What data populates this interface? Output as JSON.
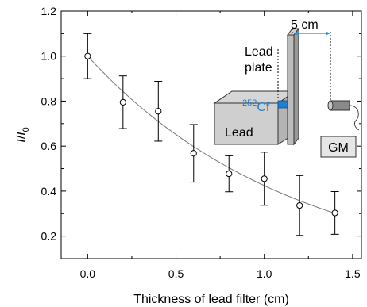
{
  "chart_data": {
    "type": "scatter",
    "title": "",
    "xlabel": "Thickness of lead filter (cm)",
    "ylabel_main": "I",
    "ylabel_sep": "/",
    "ylabel_sym": "I",
    "ylabel_sub": "0",
    "xlim": [
      -0.15,
      1.55
    ],
    "ylim": [
      0.1,
      1.2
    ],
    "x_ticks": [
      0.0,
      0.5,
      1.0,
      1.5
    ],
    "x_tick_labels": [
      "0.0",
      "0.5",
      "1.0",
      "1.5"
    ],
    "y_ticks": [
      0.2,
      0.4,
      0.6,
      0.8,
      1.0,
      1.2
    ],
    "y_tick_labels": [
      "0.2",
      "0.4",
      "0.6",
      "0.8",
      "1.0",
      "1.2"
    ],
    "grid": false,
    "points": [
      {
        "x": 0.0,
        "y": 1.0,
        "err": 0.1
      },
      {
        "x": 0.2,
        "y": 0.795,
        "err": 0.117
      },
      {
        "x": 0.4,
        "y": 0.755,
        "err": 0.133
      },
      {
        "x": 0.6,
        "y": 0.568,
        "err": 0.128
      },
      {
        "x": 0.8,
        "y": 0.477,
        "err": 0.08
      },
      {
        "x": 1.0,
        "y": 0.455,
        "err": 0.118
      },
      {
        "x": 1.2,
        "y": 0.336,
        "err": 0.133
      },
      {
        "x": 1.4,
        "y": 0.303,
        "err": 0.095
      }
    ],
    "fit_curve": {
      "type": "exponential",
      "a": 1.0,
      "mu": 0.857
    }
  },
  "inset": {
    "lead_plate_label_line1": "Lead",
    "lead_plate_label_line2": "plate",
    "distance_label": "5 cm",
    "source_superscript": "252",
    "source_element": "Cf",
    "lead_block_label": "Lead",
    "detector_label": "GM",
    "source_color": "#1f7fd0",
    "arrow_color": "#2a8fd8"
  }
}
